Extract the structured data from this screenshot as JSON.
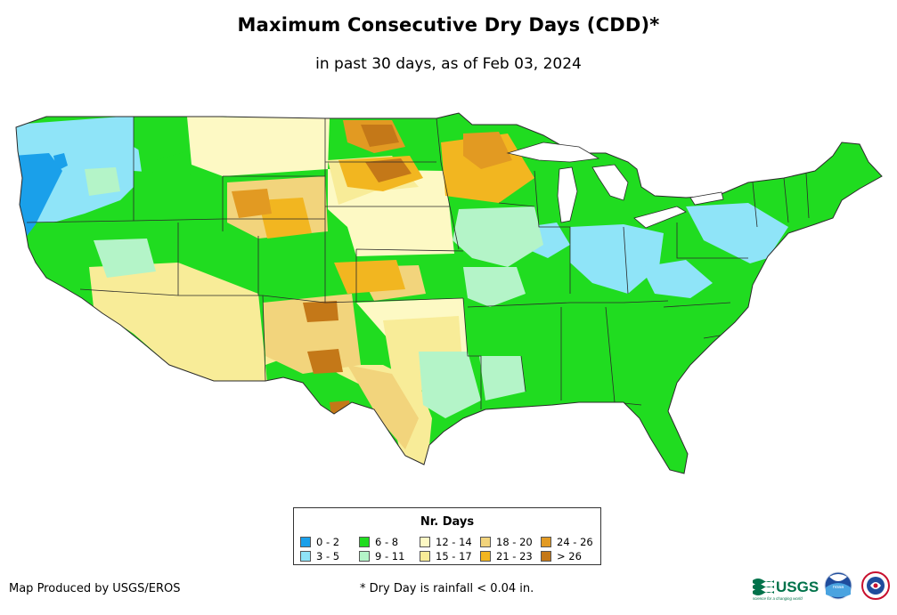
{
  "header": {
    "title": "Maximum Consecutive Dry Days (CDD)*",
    "subtitle": "in past 30 days, as of Feb 03, 2024"
  },
  "map": {
    "region": "Contiguous United States",
    "colors": {
      "c02": "#1aa0ea",
      "c35": "#8fe4f8",
      "c68": "#20dc20",
      "c911": "#b4f4c8",
      "c1214": "#fdf9c4",
      "c1517": "#f8ec98",
      "c1820": "#f2d47c",
      "c2123": "#f2b620",
      "c2426": "#e29a22",
      "c26": "#c47818",
      "border": "#2a2a2a"
    }
  },
  "legend": {
    "title": "Nr. Days",
    "items": [
      {
        "label": "0 - 2",
        "color": "#1aa0ea"
      },
      {
        "label": "6 - 8",
        "color": "#20dc20"
      },
      {
        "label": "12 - 14",
        "color": "#fdf9c4"
      },
      {
        "label": "18 - 20",
        "color": "#f2d47c"
      },
      {
        "label": "24 - 26",
        "color": "#e29a22"
      },
      {
        "label": "3 - 5",
        "color": "#8fe4f8"
      },
      {
        "label": "9 - 11",
        "color": "#b4f4c8"
      },
      {
        "label": "15 - 17",
        "color": "#f8ec98"
      },
      {
        "label": "21 - 23",
        "color": "#f2b620"
      },
      {
        "label": "> 26",
        "color": "#c47818"
      }
    ]
  },
  "footer": {
    "credit": "Map Produced by USGS/EROS",
    "footnote": "* Dry Day is rainfall < 0.04 in.",
    "logos": {
      "usgs": "USGS",
      "usgs_tagline": "science for a changing world",
      "noaa": "noaa"
    }
  }
}
